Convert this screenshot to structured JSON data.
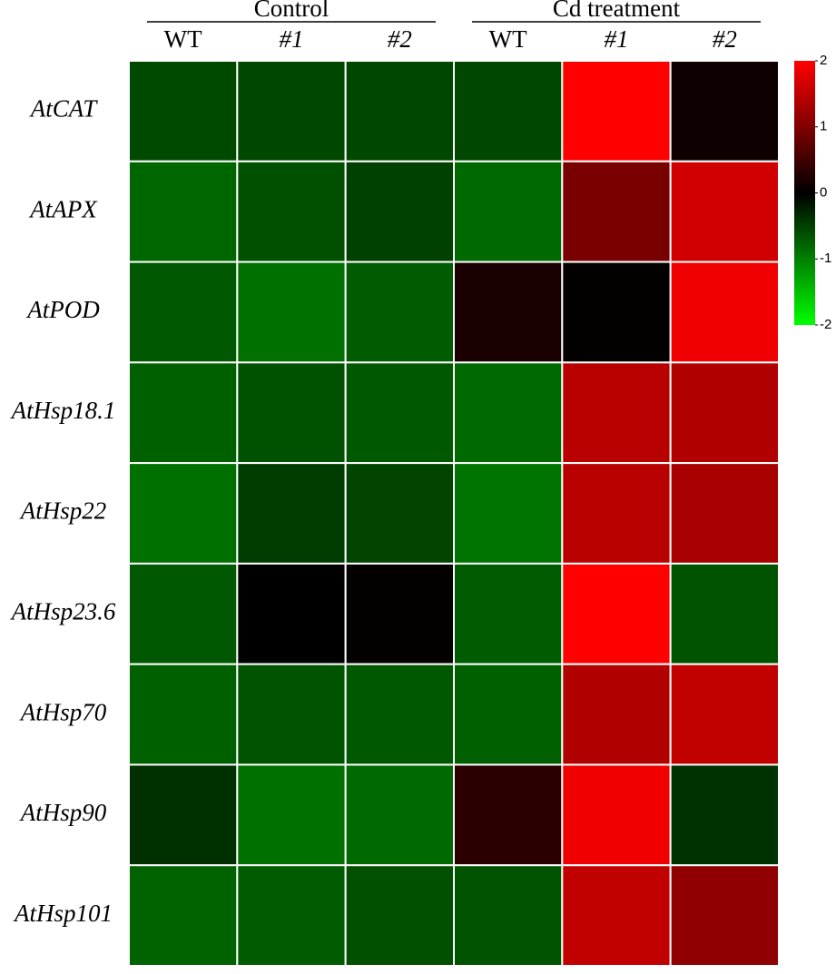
{
  "chart_data": {
    "type": "heatmap",
    "column_groups": [
      {
        "label": "Control",
        "span": 3
      },
      {
        "label": "Cd treatment",
        "span": 3
      }
    ],
    "categories": [
      "WT",
      "#1",
      "#2",
      "WT",
      "#1",
      "#2"
    ],
    "rows": [
      "AtCAT",
      "AtAPX",
      "AtPOD",
      "AtHsp18.1",
      "AtHsp22",
      "AtHsp23.6",
      "AtHsp70",
      "AtHsp90",
      "AtHsp101"
    ],
    "values": [
      [
        -0.58,
        -0.56,
        -0.56,
        -0.56,
        2.0,
        0.12
      ],
      [
        -0.8,
        -0.63,
        -0.5,
        -0.82,
        0.94,
        1.63
      ],
      [
        -0.69,
        -0.88,
        -0.72,
        0.2,
        0.02,
        1.88
      ],
      [
        -0.75,
        -0.64,
        -0.69,
        -0.82,
        1.44,
        1.38
      ],
      [
        -0.88,
        -0.47,
        -0.53,
        -0.91,
        1.44,
        1.32
      ],
      [
        -0.69,
        0,
        0.03,
        -0.72,
        2.0,
        -0.66
      ],
      [
        -0.75,
        -0.66,
        -0.69,
        -0.75,
        1.38,
        1.51
      ],
      [
        -0.38,
        -0.88,
        -0.82,
        0.33,
        1.88,
        -0.39
      ],
      [
        -0.78,
        -0.72,
        -0.63,
        -0.66,
        1.51,
        1.13
      ]
    ],
    "colors": [
      "#00ff00",
      "#000000",
      "#ff0000"
    ],
    "zlim": [
      -2,
      2
    ],
    "zticks": [
      -2,
      -1,
      0,
      1,
      2
    ]
  }
}
